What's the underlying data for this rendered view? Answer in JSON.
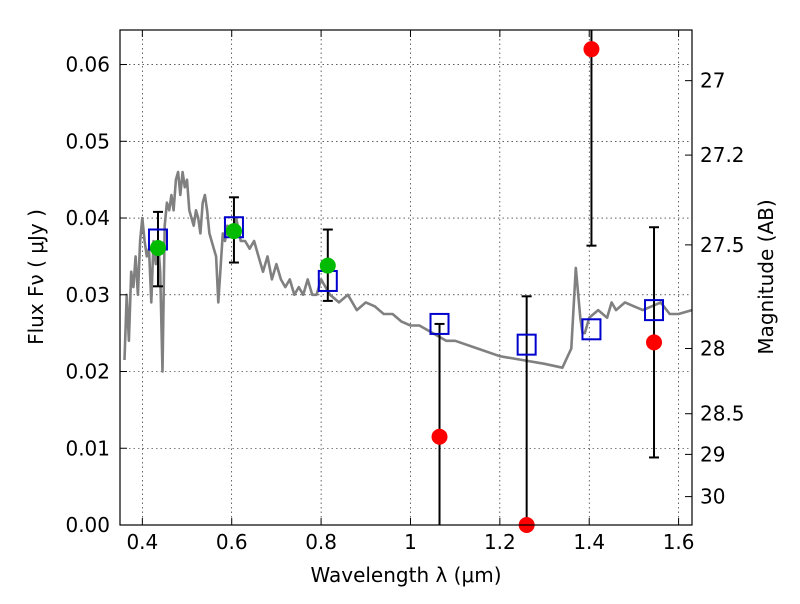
{
  "chart_data": {
    "type": "scatter",
    "title": "",
    "xlabel": "Wavelength  λ (μm)",
    "ylabel": "Flux  Fν  ( μJy )",
    "ylabel_right": "Magnitude (AB)",
    "xlim": [
      0.35,
      1.63
    ],
    "ylim": [
      0.0,
      0.0645
    ],
    "grid": true,
    "x_ticks": [
      0.4,
      0.6,
      0.8,
      1.0,
      1.2,
      1.4,
      1.6
    ],
    "x_tick_labels": [
      "0.4",
      "0.6",
      "0.8",
      "1",
      "1.2",
      "1.4",
      "1.6"
    ],
    "y_ticks": [
      0.0,
      0.01,
      0.02,
      0.03,
      0.04,
      0.05,
      0.06
    ],
    "y_tick_labels": [
      "0.00",
      "0.01",
      "0.02",
      "0.03",
      "0.04",
      "0.05",
      "0.06"
    ],
    "right_ticks": [
      {
        "label": "27",
        "flux": 0.0579
      },
      {
        "label": "27.2",
        "flux": 0.0482
      },
      {
        "label": "27.5",
        "flux": 0.0365
      },
      {
        "label": "28",
        "flux": 0.023
      },
      {
        "label": "28.5",
        "flux": 0.0145
      },
      {
        "label": "29",
        "flux": 0.0092
      },
      {
        "label": "30",
        "flux": 0.0037
      }
    ],
    "series": [
      {
        "kind": "line",
        "color": "#808080",
        "x": [
          0.36,
          0.365,
          0.37,
          0.375,
          0.38,
          0.385,
          0.39,
          0.395,
          0.4,
          0.405,
          0.41,
          0.415,
          0.42,
          0.425,
          0.43,
          0.435,
          0.44,
          0.445,
          0.45,
          0.455,
          0.46,
          0.465,
          0.47,
          0.475,
          0.48,
          0.485,
          0.49,
          0.495,
          0.5,
          0.505,
          0.51,
          0.515,
          0.52,
          0.525,
          0.53,
          0.535,
          0.54,
          0.545,
          0.55,
          0.56,
          0.565,
          0.57,
          0.58,
          0.585,
          0.59,
          0.6,
          0.61,
          0.62,
          0.63,
          0.64,
          0.65,
          0.66,
          0.67,
          0.68,
          0.69,
          0.7,
          0.71,
          0.72,
          0.73,
          0.74,
          0.75,
          0.76,
          0.77,
          0.78,
          0.79,
          0.8,
          0.82,
          0.84,
          0.86,
          0.88,
          0.9,
          0.92,
          0.94,
          0.96,
          0.98,
          1.0,
          1.02,
          1.05,
          1.08,
          1.1,
          1.15,
          1.2,
          1.25,
          1.3,
          1.34,
          1.36,
          1.37,
          1.38,
          1.385,
          1.39,
          1.4,
          1.42,
          1.44,
          1.45,
          1.46,
          1.48,
          1.5,
          1.52,
          1.54,
          1.56,
          1.58,
          1.6,
          1.63
        ],
        "y": [
          0.0215,
          0.03,
          0.024,
          0.033,
          0.031,
          0.035,
          0.03,
          0.037,
          0.04,
          0.037,
          0.035,
          0.036,
          0.029,
          0.037,
          0.034,
          0.037,
          0.033,
          0.02,
          0.039,
          0.042,
          0.041,
          0.043,
          0.041,
          0.045,
          0.046,
          0.043,
          0.046,
          0.044,
          0.045,
          0.041,
          0.04,
          0.039,
          0.041,
          0.04,
          0.038,
          0.042,
          0.043,
          0.041,
          0.038,
          0.036,
          0.035,
          0.029,
          0.038,
          0.037,
          0.039,
          0.038,
          0.04,
          0.037,
          0.037,
          0.036,
          0.037,
          0.035,
          0.033,
          0.035,
          0.032,
          0.034,
          0.032,
          0.031,
          0.032,
          0.03,
          0.031,
          0.03,
          0.032,
          0.03,
          0.03,
          0.032,
          0.03,
          0.029,
          0.03,
          0.028,
          0.029,
          0.0285,
          0.0275,
          0.0275,
          0.0265,
          0.026,
          0.026,
          0.025,
          0.024,
          0.024,
          0.023,
          0.022,
          0.0215,
          0.021,
          0.0205,
          0.023,
          0.0335,
          0.027,
          0.025,
          0.025,
          0.027,
          0.028,
          0.027,
          0.029,
          0.028,
          0.029,
          0.0285,
          0.028,
          0.0285,
          0.029,
          0.0275,
          0.0275,
          0.028
        ]
      },
      {
        "kind": "square",
        "color": "#0000cc",
        "x": [
          0.435,
          0.605,
          0.815,
          1.065,
          1.26,
          1.405,
          1.545
        ],
        "y": [
          0.0372,
          0.0388,
          0.0318,
          0.0262,
          0.0235,
          0.0255,
          0.028
        ]
      },
      {
        "kind": "points",
        "color": "#00bb00",
        "x": [
          0.435,
          0.605,
          0.815
        ],
        "y": [
          0.0361,
          0.0383,
          0.0338
        ],
        "err_low": [
          0.0311,
          0.0342,
          0.0292
        ],
        "err_high": [
          0.0408,
          0.0427,
          0.0385
        ]
      },
      {
        "kind": "points",
        "color": "#ff0000",
        "x": [
          1.065,
          1.26,
          1.405,
          1.545
        ],
        "y": [
          0.0115,
          0.0,
          0.062,
          0.0238
        ],
        "err_low": [
          0.0,
          0.0,
          0.0364,
          0.0088
        ],
        "err_high": [
          0.0262,
          0.0298,
          0.0645,
          0.0388
        ]
      }
    ]
  }
}
